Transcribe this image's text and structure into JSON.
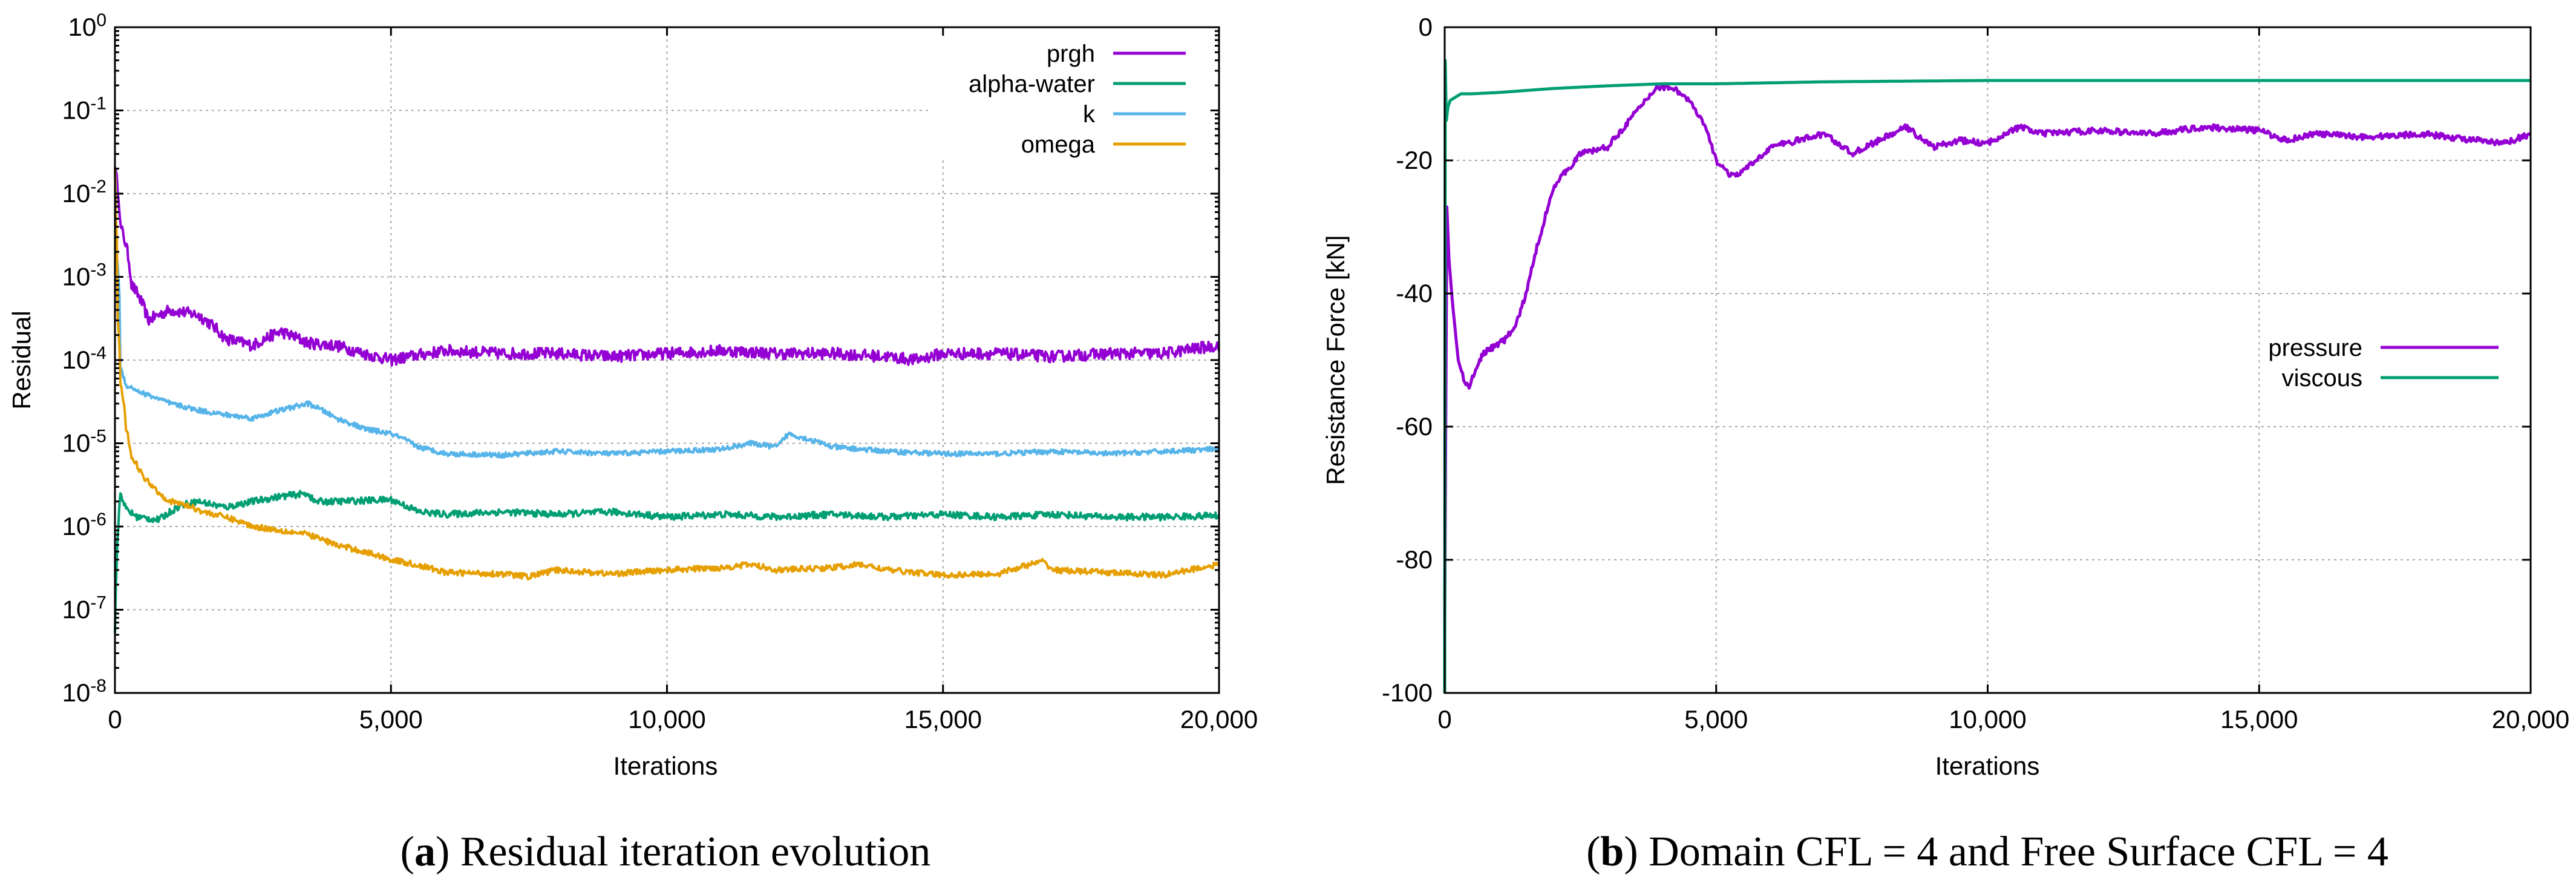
{
  "colors": {
    "prgh": "#9400d3",
    "alpha_water": "#009e73",
    "k": "#56b4e9",
    "omega": "#e69f00",
    "pressure": "#9400d3",
    "viscous": "#009e73"
  },
  "chart_data": [
    {
      "type": "line",
      "yscale": "log",
      "xlabel": "Iterations",
      "ylabel": "Residual",
      "xlim": [
        0,
        20000
      ],
      "ylim": [
        1e-08,
        1
      ],
      "x_ticks": [
        "0",
        "5,000",
        "10,000",
        "15,000",
        "20,000"
      ],
      "y_tick_base": "10",
      "y_tick_exponents": [
        "0",
        "-1",
        "-2",
        "-3",
        "-4",
        "-5",
        "-6",
        "-7",
        "-8"
      ],
      "legend_position": "top-right",
      "caption_label": "a",
      "caption_text": " Residual iteration evolution",
      "series": [
        {
          "name": "prgh",
          "color_key": "prgh",
          "x": [
            0,
            100,
            300,
            600,
            1000,
            1500,
            2000,
            2500,
            3000,
            3500,
            4000,
            4500,
            5000,
            6000,
            7000,
            8000,
            9000,
            10000,
            11000,
            12000,
            13000,
            14000,
            14500,
            15000,
            16000,
            17000,
            18000,
            19000,
            20000
          ],
          "y": [
            0.02,
            0.004,
            0.0008,
            0.0003,
            0.0004,
            0.00035,
            0.00018,
            0.00015,
            0.00022,
            0.00016,
            0.00015,
            0.00012,
            0.0001,
            0.00013,
            0.00012,
            0.00012,
            0.00011,
            0.00012,
            0.00013,
            0.00012,
            0.00012,
            0.00011,
            0.0001,
            0.00012,
            0.00012,
            0.00011,
            0.00012,
            0.00012,
            0.00015
          ]
        },
        {
          "name": "alpha-water",
          "color_key": "alpha_water",
          "x": [
            0,
            30,
            60,
            100,
            200,
            400,
            800,
            1200,
            1500,
            2000,
            2500,
            3000,
            3500,
            3600,
            4000,
            5000,
            5500,
            6000,
            7000,
            8000,
            9000,
            10000,
            11000,
            12000,
            13000,
            14000,
            15000,
            16000,
            17000,
            18000,
            19000,
            20000
          ],
          "y": [
            5e-08,
            3e-07,
            1e-06,
            2.5e-06,
            1.6e-06,
            1.3e-06,
            1.2e-06,
            1.8e-06,
            2e-06,
            1.7e-06,
            2e-06,
            2.3e-06,
            2.5e-06,
            2e-06,
            2e-06,
            2.1e-06,
            1.5e-06,
            1.4e-06,
            1.5e-06,
            1.4e-06,
            1.5e-06,
            1.3e-06,
            1.4e-06,
            1.3e-06,
            1.4e-06,
            1.3e-06,
            1.4e-06,
            1.3e-06,
            1.4e-06,
            1.3e-06,
            1.3e-06,
            1.35e-06
          ]
        },
        {
          "name": "k",
          "color_key": "k",
          "x": [
            0,
            30,
            100,
            200,
            500,
            1000,
            1500,
            2000,
            2500,
            3000,
            3500,
            4000,
            4500,
            5000,
            5500,
            6000,
            7000,
            8000,
            9000,
            10000,
            11000,
            11500,
            12000,
            12200,
            13000,
            14000,
            15000,
            16000,
            17000,
            18000,
            19000,
            20000
          ],
          "y": [
            0.02,
            0.002,
            8e-05,
            5e-05,
            4e-05,
            3e-05,
            2.5e-05,
            2.2e-05,
            2e-05,
            2.5e-05,
            3e-05,
            2e-05,
            1.5e-05,
            1.3e-05,
            9e-06,
            7.5e-06,
            7.2e-06,
            8e-06,
            7.5e-06,
            8e-06,
            8.5e-06,
            1e-05,
            9e-06,
            1.3e-05,
            9e-06,
            8e-06,
            7.5e-06,
            7.5e-06,
            8e-06,
            7.5e-06,
            8e-06,
            8.5e-06
          ]
        },
        {
          "name": "omega",
          "color_key": "omega",
          "x": [
            0,
            20,
            50,
            100,
            200,
            300,
            500,
            800,
            1000,
            1300,
            1600,
            2000,
            2500,
            3000,
            3500,
            4000,
            4500,
            5000,
            6000,
            7000,
            7500,
            8000,
            9000,
            10000,
            11000,
            11500,
            12000,
            13000,
            13500,
            14000,
            15000,
            16000,
            16800,
            17000,
            18000,
            19000,
            20000
          ],
          "y": [
            0.02,
            0.005,
            0.0003,
            5e-05,
            1.5e-05,
            7e-06,
            4e-06,
            2.5e-06,
            2e-06,
            1.8e-06,
            1.5e-06,
            1.3e-06,
            1e-06,
            9e-07,
            8e-07,
            6e-07,
            5e-07,
            4e-07,
            2.8e-07,
            2.7e-07,
            2.5e-07,
            3e-07,
            2.7e-07,
            3e-07,
            3.2e-07,
            3.5e-07,
            3e-07,
            3.2e-07,
            3.5e-07,
            3e-07,
            2.6e-07,
            2.7e-07,
            3.8e-07,
            3e-07,
            2.8e-07,
            2.6e-07,
            3.5e-07
          ]
        }
      ]
    },
    {
      "type": "line",
      "xlabel": "Iterations",
      "ylabel": "Resistance Force [kN]",
      "xlim": [
        0,
        20000
      ],
      "ylim": [
        -100,
        0
      ],
      "x_ticks": [
        "0",
        "5,000",
        "10,000",
        "15,000",
        "20,000"
      ],
      "y_ticks": [
        "0",
        "-20",
        "-40",
        "-60",
        "-80",
        "-100"
      ],
      "legend_position": "center-right",
      "caption_label": "b",
      "caption_text": " Domain CFL = 4 and Free Surface CFL = 4",
      "series": [
        {
          "name": "pressure",
          "color_key": "pressure",
          "x": [
            0,
            40,
            80,
            150,
            250,
            350,
            450,
            550,
            700,
            900,
            1100,
            1300,
            1500,
            1700,
            2000,
            2500,
            3000,
            3300,
            3600,
            3900,
            4200,
            4500,
            4800,
            5000,
            5300,
            5600,
            6000,
            6500,
            7000,
            7500,
            8000,
            8500,
            9000,
            9500,
            10000,
            10300,
            10600,
            11000,
            12000,
            13000,
            14000,
            15000,
            15500,
            16000,
            17000,
            18000,
            19000,
            19500,
            20000
          ],
          "y": [
            -90,
            -27,
            -35,
            -42,
            -50,
            -53,
            -54,
            -52,
            -49,
            -48,
            -47,
            -45,
            -40,
            -33,
            -24,
            -19,
            -18,
            -15,
            -12,
            -9,
            -9,
            -11,
            -15,
            -20,
            -22.5,
            -21,
            -18,
            -17,
            -16,
            -19,
            -17,
            -15,
            -18,
            -17,
            -17.5,
            -16,
            -15,
            -16,
            -15.5,
            -16,
            -15,
            -15.5,
            -17,
            -16,
            -16.5,
            -16,
            -17,
            -17.5,
            -16
          ]
        },
        {
          "name": "viscous",
          "color_key": "viscous",
          "x": [
            0,
            10,
            30,
            60,
            100,
            200,
            300,
            500,
            1000,
            2000,
            3000,
            4000,
            5000,
            7000,
            10000,
            15000,
            20000
          ],
          "y": [
            -100,
            -5,
            -14,
            -12,
            -11,
            -10.5,
            -10,
            -10,
            -9.8,
            -9.2,
            -8.8,
            -8.5,
            -8.5,
            -8.2,
            -8,
            -8,
            -8
          ]
        }
      ]
    }
  ]
}
